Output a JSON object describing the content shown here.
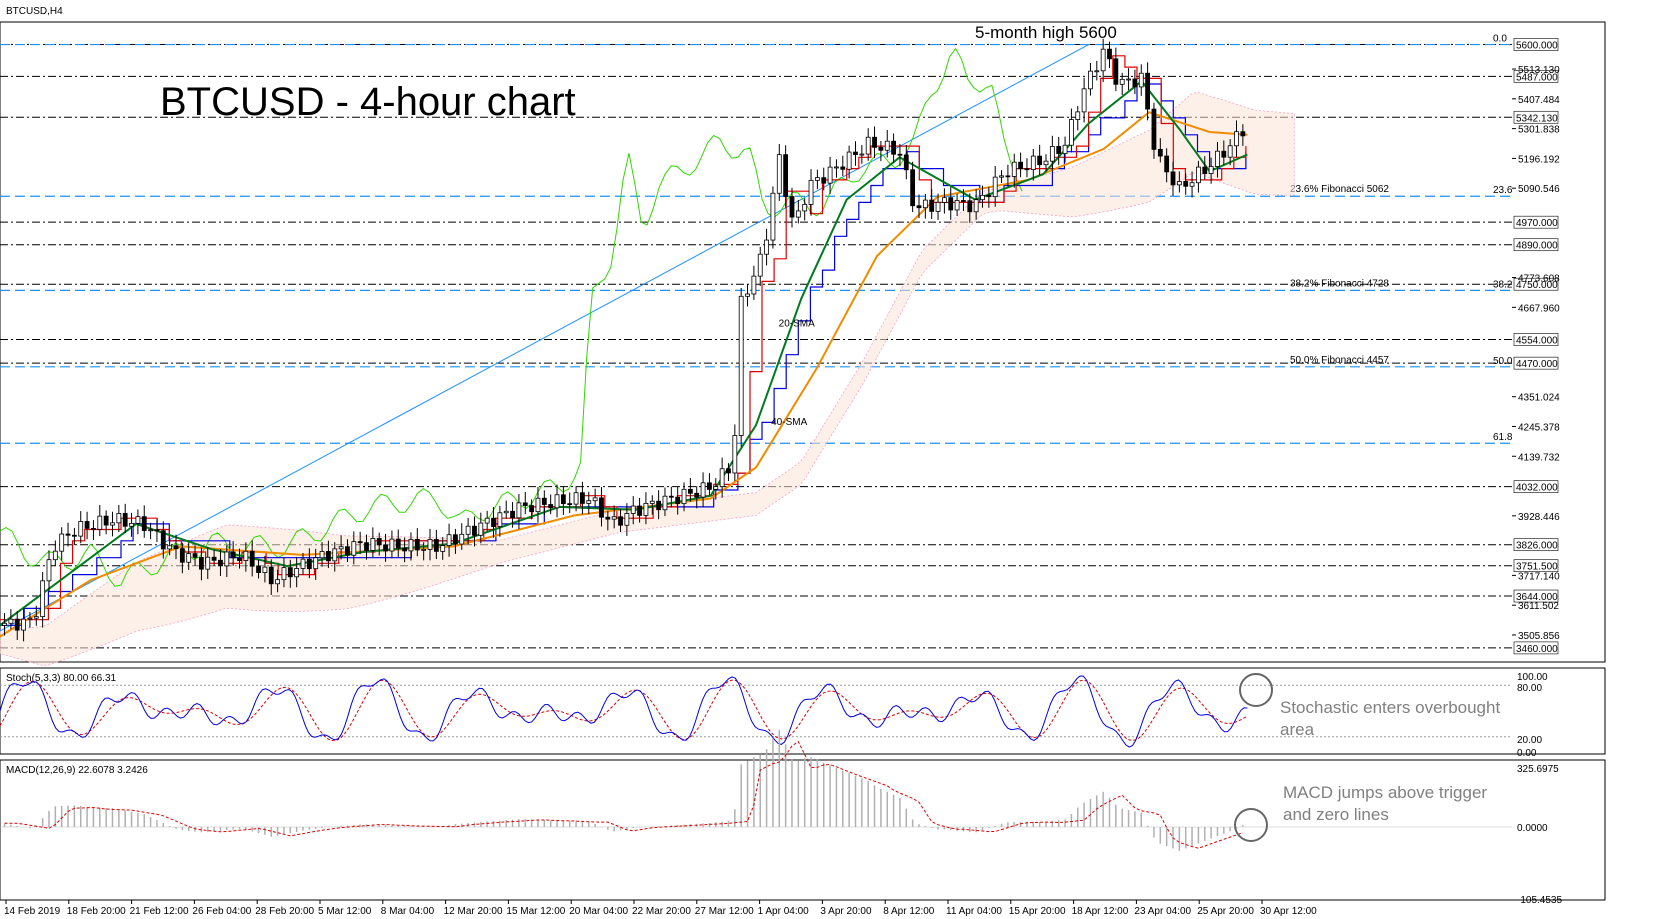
{
  "chart_data": {
    "type": "candlestick",
    "symbol_label": "BTCUSD,H4",
    "title": "BTCUSD - 4-hour chart",
    "y_range": [
      3410,
      5680
    ],
    "price_axis_ticks": [
      "5513.130",
      "5407.484",
      "5301.838",
      "5196.192",
      "5090.546",
      "4773.608",
      "4667.960",
      "4351.024",
      "4245.378",
      "4139.732",
      "3928.446",
      "3717.140",
      "3611.502",
      "3505.856"
    ],
    "level_lines": [
      {
        "price": 5600,
        "label": "5600.000"
      },
      {
        "price": 5487,
        "label": "5487.000"
      },
      {
        "price": 5342.13,
        "label": "5342.130"
      },
      {
        "price": 4970,
        "label": "4970.000"
      },
      {
        "price": 4890,
        "label": "4890.000"
      },
      {
        "price": 4750,
        "label": "4750.000"
      },
      {
        "price": 4554,
        "label": "4554.000"
      },
      {
        "price": 4470,
        "label": "4470.000"
      },
      {
        "price": 4032,
        "label": "4032.000"
      },
      {
        "price": 3826,
        "label": "3826.000"
      },
      {
        "price": 3751.5,
        "label": "3751.500"
      },
      {
        "price": 3644,
        "label": "3644.000"
      },
      {
        "price": 3460,
        "label": "3460.000"
      }
    ],
    "fibonacci": [
      {
        "level": "0.0",
        "price": 5600,
        "label": ""
      },
      {
        "level": "23.6",
        "price": 5062,
        "label": "23.6% Fibonacci 5062"
      },
      {
        "level": "38.2",
        "price": 4728,
        "label": "38.2% Fibonacci 4728"
      },
      {
        "level": "50.0",
        "price": 4457,
        "label": "50.0% Fibonacci 4457"
      },
      {
        "level": "61.8",
        "price": 4186,
        "label": ""
      }
    ],
    "time_labels": [
      "14 Feb 2019",
      "18 Feb 20:00",
      "21 Feb 12:00",
      "26 Feb 04:00",
      "28 Feb 20:00",
      "5 Mar 12:00",
      "8 Mar 04:00",
      "12 Mar 20:00",
      "15 Mar 12:00",
      "20 Mar 04:00",
      "22 Mar 20:00",
      "27 Mar 12:00",
      "1 Apr 04:00",
      "3 Apr 20:00",
      "8 Apr 12:00",
      "11 Apr 04:00",
      "15 Apr 20:00",
      "18 Apr 12:00",
      "23 Apr 04:00",
      "25 Apr 20:00",
      "30 Apr 12:00"
    ],
    "price_path": [
      {
        "t": 0.0,
        "p": 3540
      },
      {
        "t": 0.022,
        "p": 3555
      },
      {
        "t": 0.035,
        "p": 3820
      },
      {
        "t": 0.05,
        "p": 3880
      },
      {
        "t": 0.075,
        "p": 3915
      },
      {
        "t": 0.095,
        "p": 3900
      },
      {
        "t": 0.115,
        "p": 3800
      },
      {
        "t": 0.135,
        "p": 3760
      },
      {
        "t": 0.16,
        "p": 3790
      },
      {
        "t": 0.18,
        "p": 3700
      },
      {
        "t": 0.195,
        "p": 3740
      },
      {
        "t": 0.215,
        "p": 3790
      },
      {
        "t": 0.24,
        "p": 3830
      },
      {
        "t": 0.265,
        "p": 3820
      },
      {
        "t": 0.29,
        "p": 3820
      },
      {
        "t": 0.32,
        "p": 3900
      },
      {
        "t": 0.345,
        "p": 3960
      },
      {
        "t": 0.37,
        "p": 3980
      },
      {
        "t": 0.39,
        "p": 3990
      },
      {
        "t": 0.405,
        "p": 3900
      },
      {
        "t": 0.42,
        "p": 3950
      },
      {
        "t": 0.445,
        "p": 3990
      },
      {
        "t": 0.47,
        "p": 4030
      },
      {
        "t": 0.485,
        "p": 4110
      },
      {
        "t": 0.49,
        "p": 4680
      },
      {
        "t": 0.505,
        "p": 4860
      },
      {
        "t": 0.515,
        "p": 5200
      },
      {
        "t": 0.525,
        "p": 4950
      },
      {
        "t": 0.535,
        "p": 5100
      },
      {
        "t": 0.55,
        "p": 5150
      },
      {
        "t": 0.56,
        "p": 5190
      },
      {
        "t": 0.575,
        "p": 5250
      },
      {
        "t": 0.595,
        "p": 5220
      },
      {
        "t": 0.605,
        "p": 5020
      },
      {
        "t": 0.625,
        "p": 5040
      },
      {
        "t": 0.645,
        "p": 5030
      },
      {
        "t": 0.665,
        "p": 5150
      },
      {
        "t": 0.69,
        "p": 5190
      },
      {
        "t": 0.705,
        "p": 5250
      },
      {
        "t": 0.715,
        "p": 5420
      },
      {
        "t": 0.73,
        "p": 5580
      },
      {
        "t": 0.74,
        "p": 5460
      },
      {
        "t": 0.755,
        "p": 5480
      },
      {
        "t": 0.765,
        "p": 5200
      },
      {
        "t": 0.78,
        "p": 5090
      },
      {
        "t": 0.8,
        "p": 5170
      },
      {
        "t": 0.815,
        "p": 5250
      },
      {
        "t": 0.825,
        "p": 5320
      }
    ],
    "sma20_path": [
      {
        "t": 0.0,
        "p": 3540
      },
      {
        "t": 0.04,
        "p": 3700
      },
      {
        "t": 0.09,
        "p": 3900
      },
      {
        "t": 0.14,
        "p": 3810
      },
      {
        "t": 0.19,
        "p": 3750
      },
      {
        "t": 0.24,
        "p": 3800
      },
      {
        "t": 0.3,
        "p": 3830
      },
      {
        "t": 0.37,
        "p": 3960
      },
      {
        "t": 0.42,
        "p": 3950
      },
      {
        "t": 0.47,
        "p": 4000
      },
      {
        "t": 0.5,
        "p": 4250
      },
      {
        "t": 0.53,
        "p": 4700
      },
      {
        "t": 0.56,
        "p": 5050
      },
      {
        "t": 0.595,
        "p": 5200
      },
      {
        "t": 0.645,
        "p": 5050
      },
      {
        "t": 0.69,
        "p": 5140
      },
      {
        "t": 0.72,
        "p": 5320
      },
      {
        "t": 0.755,
        "p": 5470
      },
      {
        "t": 0.78,
        "p": 5300
      },
      {
        "t": 0.8,
        "p": 5150
      },
      {
        "t": 0.825,
        "p": 5210
      }
    ],
    "sma40_path": [
      {
        "t": 0.0,
        "p": 3500
      },
      {
        "t": 0.06,
        "p": 3700
      },
      {
        "t": 0.12,
        "p": 3820
      },
      {
        "t": 0.2,
        "p": 3790
      },
      {
        "t": 0.3,
        "p": 3820
      },
      {
        "t": 0.38,
        "p": 3930
      },
      {
        "t": 0.47,
        "p": 3990
      },
      {
        "t": 0.5,
        "p": 4100
      },
      {
        "t": 0.54,
        "p": 4450
      },
      {
        "t": 0.58,
        "p": 4850
      },
      {
        "t": 0.62,
        "p": 5060
      },
      {
        "t": 0.68,
        "p": 5120
      },
      {
        "t": 0.73,
        "p": 5230
      },
      {
        "t": 0.76,
        "p": 5360
      },
      {
        "t": 0.8,
        "p": 5290
      },
      {
        "t": 0.825,
        "p": 5280
      }
    ],
    "trendline": {
      "t1": 0.0,
      "p1": 3520,
      "t2": 0.72,
      "p2": 5600
    },
    "sma_labels": [
      {
        "text": "20-SMA",
        "t": 0.515,
        "p": 4600
      },
      {
        "text": "40-SMA",
        "t": 0.51,
        "p": 4250
      }
    ],
    "annotations": [
      {
        "text": "5-month high 5600"
      }
    ],
    "stochastic": {
      "label": "Stoch(5,3,3) 80.00 66.31",
      "axis": [
        "100.00",
        "80.00",
        "20.00",
        "0.00"
      ],
      "annotation": [
        "Stochastic enters overbought",
        "area"
      ]
    },
    "macd": {
      "label": "MACD(12,26,9) 22.6078 3.2426",
      "axis": [
        "325.6975",
        "0.0000",
        "-105.4535"
      ],
      "annotation": [
        "MACD jumps above trigger",
        "and zero lines"
      ]
    },
    "colors": {
      "candle_up": "#000000",
      "candle_down": "#000000",
      "sma20": "#007a1f",
      "sma40": "#f08c00",
      "tenkan": "#e00000",
      "kijun": "#0000e0",
      "chikou": "#2fd800",
      "fib": "#1e90ff",
      "cloud": "#f4a0c8",
      "stoch_main": "#0000e0",
      "stoch_signal": "#e00000",
      "macd_hist": "#b0b0b0",
      "macd_signal": "#e00000"
    }
  }
}
